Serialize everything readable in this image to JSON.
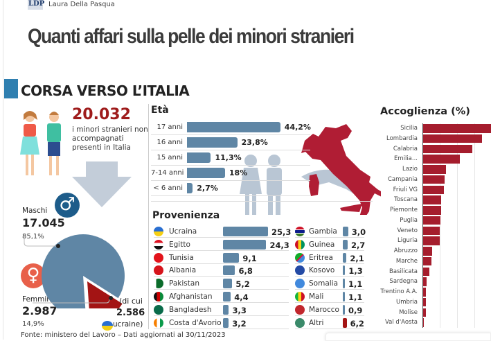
{
  "header": {
    "logo": "LDP",
    "author": "Laura Della Pasqua",
    "headline": "Quanti affari sulla pelle dei minori stranieri"
  },
  "section_title": "CORSA VERSO L’ITALIA",
  "summary": {
    "total": "20.032",
    "total_label": "i minori stranieri non accompagnati presenti in Italia",
    "male_label": "Maschi",
    "male_count": "17.045",
    "male_pct": "85,1%",
    "female_label": "Femmine",
    "female_count": "2.987",
    "female_pct": "14,9%",
    "of_which_1": "(di cui",
    "of_which_2": "2.586",
    "of_which_3": "ucraine)",
    "pie": {
      "male_pct": 85.1,
      "female_pct": 14.9
    }
  },
  "colors": {
    "blue": "#5f86a5",
    "red": "#a51d2d",
    "dark_red": "#a31414"
  },
  "chart_data": [
    {
      "type": "bar",
      "title": "Età",
      "categories": [
        "17 anni",
        "16 anni",
        "15 anni",
        "7-14 anni",
        "< 6 anni"
      ],
      "values": [
        44.2,
        23.8,
        11.3,
        18,
        2.7
      ],
      "labels": [
        "44,2%",
        "23,8%",
        "11,3%",
        "18%",
        "2,7%"
      ]
    },
    {
      "type": "bar",
      "title": "Provenienza",
      "categories": [
        "Ucraina",
        "Egitto",
        "Tunisia",
        "Albania",
        "Pakistan",
        "Afghanistan",
        "Bangladesh",
        "Costa d'Avorio",
        "Gambia",
        "Guinea",
        "Eritrea",
        "Kosovo",
        "Somalia",
        "Mali",
        "Marocco",
        "Altri"
      ],
      "values": [
        25.3,
        24.3,
        9.1,
        6.8,
        5.2,
        4.4,
        3.3,
        3.2,
        3.0,
        2.7,
        2.1,
        1.3,
        1.1,
        1.1,
        0.9,
        6.2
      ],
      "labels": [
        "25,3",
        "24,3",
        "9,1",
        "6,8",
        "5,2",
        "4,4",
        "3,3",
        "3,2",
        "3,0",
        "2,7",
        "2,1",
        "1,3",
        "1,1",
        "1,1",
        "0,9",
        "6,2"
      ]
    },
    {
      "type": "bar",
      "title": "Accoglienza (%)",
      "categories": [
        "Sicilia",
        "Lombardia",
        "Calabria",
        "Emilia...",
        "Lazio",
        "Campania",
        "Friuli VG",
        "Toscana",
        "Piemonte",
        "Puglia",
        "Veneto",
        "Liguria",
        "Abruzzo",
        "Marche",
        "Basilicata",
        "Sardegna",
        "Trentino A.A.",
        "Umbria",
        "Molise",
        "Val d'Aosta"
      ],
      "values": [
        24.5,
        21,
        17.5,
        13,
        8.2,
        7.7,
        7.4,
        6.5,
        6.3,
        6.1,
        6.0,
        6.0,
        3.3,
        3.0,
        2.1,
        1.3,
        1.1,
        1.1,
        1.0,
        0.1
      ]
    }
  ],
  "footer": "Fonte: ministero del Lavoro – Dati aggiornati al 30/11/2023"
}
